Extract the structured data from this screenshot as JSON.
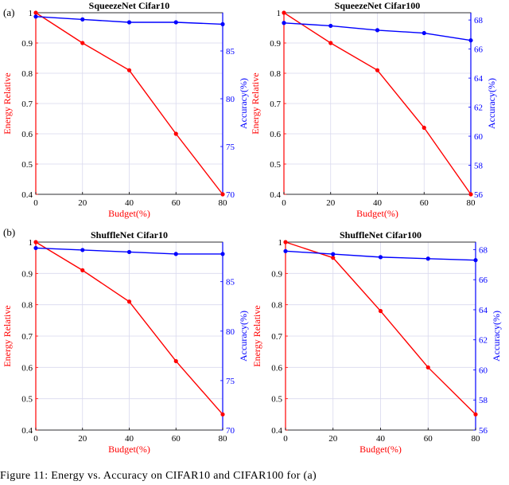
{
  "panel_labels": [
    "(a)",
    "(b)"
  ],
  "caption": "Figure 11: Energy vs. Accuracy on CIFAR10 and CIFAR100 for (a)",
  "colors": {
    "energy": "#ff0000",
    "accuracy": "#0000ff",
    "grid": "#d9d9ee"
  },
  "chart_data": [
    {
      "type": "line",
      "title": "SqueezeNet Cifar10",
      "xlabel": "Budget(%)",
      "ylabel_left": "Energy Relative",
      "ylabel_right": "Accuracy(%)",
      "x": [
        0,
        20,
        40,
        60,
        80
      ],
      "xticks": [
        "0",
        "20",
        "40",
        "60",
        "80"
      ],
      "xlim": [
        0,
        80
      ],
      "ylim_left": [
        0.4,
        1.0
      ],
      "yticks_left": [
        "0.4",
        "0.5",
        "0.6",
        "0.7",
        "0.8",
        "0.9",
        "1"
      ],
      "yticks_left_values": [
        0.4,
        0.5,
        0.6,
        0.7,
        0.8,
        0.9,
        1.0
      ],
      "ylim_right": [
        70,
        89
      ],
      "yticks_right": [
        "70",
        "75",
        "80",
        "85"
      ],
      "yticks_right_values": [
        70,
        75,
        80,
        85
      ],
      "energy": [
        1.0,
        0.9,
        0.81,
        0.6,
        0.4
      ],
      "accuracy": [
        88.6,
        88.3,
        88.0,
        88.0,
        87.8
      ],
      "grid": true
    },
    {
      "type": "line",
      "title": "SqueezeNet Cifar100",
      "xlabel": "Budget(%)",
      "ylabel_left": "Energy Relative",
      "ylabel_right": "Accuracy(%)",
      "x": [
        0,
        20,
        40,
        60,
        80
      ],
      "xticks": [
        "0",
        "20",
        "40",
        "60",
        "80"
      ],
      "xlim": [
        0,
        80
      ],
      "ylim_left": [
        0.4,
        1.0
      ],
      "yticks_left": [
        "0.4",
        "0.5",
        "0.6",
        "0.7",
        "0.8",
        "0.9",
        "1"
      ],
      "yticks_left_values": [
        0.4,
        0.5,
        0.6,
        0.7,
        0.8,
        0.9,
        1.0
      ],
      "ylim_right": [
        56,
        68.5
      ],
      "yticks_right": [
        "56",
        "58",
        "60",
        "62",
        "64",
        "66",
        "68"
      ],
      "yticks_right_values": [
        56,
        58,
        60,
        62,
        64,
        66,
        68
      ],
      "energy": [
        1.0,
        0.9,
        0.81,
        0.62,
        0.4
      ],
      "accuracy": [
        67.8,
        67.6,
        67.3,
        67.1,
        66.6
      ],
      "grid": true
    },
    {
      "type": "line",
      "title": "ShuffleNet Cifar10",
      "xlabel": "Budget(%)",
      "ylabel_left": "Energy Relative",
      "ylabel_right": "Accuracy(%)",
      "x": [
        0,
        20,
        40,
        60,
        80
      ],
      "xticks": [
        "0",
        "20",
        "40",
        "60",
        "80"
      ],
      "xlim": [
        0,
        80
      ],
      "ylim_left": [
        0.4,
        1.0
      ],
      "yticks_left": [
        "0.4",
        "0.5",
        "0.6",
        "0.7",
        "0.8",
        "0.9",
        "1"
      ],
      "yticks_left_values": [
        0.4,
        0.5,
        0.6,
        0.7,
        0.8,
        0.9,
        1.0
      ],
      "ylim_right": [
        70,
        89
      ],
      "yticks_right": [
        "70",
        "75",
        "80",
        "85"
      ],
      "yticks_right_values": [
        70,
        75,
        80,
        85
      ],
      "energy": [
        1.0,
        0.91,
        0.81,
        0.62,
        0.45
      ],
      "accuracy": [
        88.4,
        88.2,
        88.0,
        87.8,
        87.8
      ],
      "grid": true
    },
    {
      "type": "line",
      "title": "ShuffleNet Cifar100",
      "xlabel": "Budget(%)",
      "ylabel_left": "Energy Relative",
      "ylabel_right": "Accuracy(%)",
      "x": [
        0,
        20,
        40,
        60,
        80
      ],
      "xticks": [
        "0",
        "20",
        "40",
        "60",
        "80"
      ],
      "xlim": [
        0,
        80
      ],
      "ylim_left": [
        0.4,
        1.0
      ],
      "yticks_left": [
        "0.4",
        "0.5",
        "0.6",
        "0.7",
        "0.8",
        "0.9",
        "1"
      ],
      "yticks_left_values": [
        0.4,
        0.5,
        0.6,
        0.7,
        0.8,
        0.9,
        1.0
      ],
      "ylim_right": [
        56,
        68.5
      ],
      "yticks_right": [
        "56",
        "58",
        "60",
        "62",
        "64",
        "66",
        "68"
      ],
      "yticks_right_values": [
        56,
        58,
        60,
        62,
        64,
        66,
        68
      ],
      "energy": [
        1.0,
        0.95,
        0.78,
        0.6,
        0.45
      ],
      "accuracy": [
        67.9,
        67.7,
        67.5,
        67.4,
        67.3
      ],
      "grid": true
    }
  ]
}
